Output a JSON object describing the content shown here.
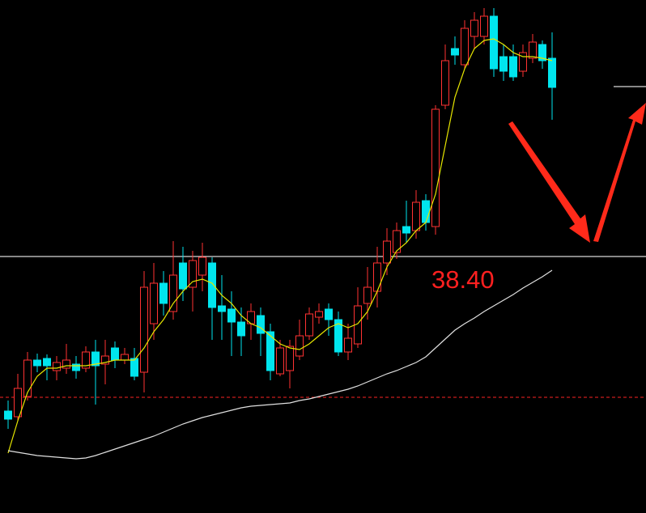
{
  "chart_data": {
    "type": "candlestick",
    "ylim": [
      25.72,
      51.08
    ],
    "up_color": "#ff3232",
    "down_color": "#00e5ee",
    "candles": {
      "open": [
        30.76,
        30.48,
        31.48,
        33.28,
        33.36,
        32.76,
        32.88,
        33.08,
        32.88,
        33.68,
        33.08,
        33.88,
        33.28,
        33.36,
        32.68,
        35.08,
        37.08,
        35.68,
        38.08,
        36.88,
        37.48,
        38.08,
        35.96,
        35.8,
        35.16,
        35.08,
        35.48,
        34.68,
        32.6,
        32.76,
        33.48,
        34.48,
        35.4,
        35.8,
        35.28,
        33.68,
        34.08,
        36.08,
        36.68,
        38.08,
        38.6,
        39.88,
        39.68,
        41.16,
        39.88,
        45.88,
        48.68,
        47.88,
        49.28,
        49.28,
        50.28,
        48.28,
        48.28,
        47.56,
        48.2,
        48.88,
        48.2
      ],
      "high": [
        31.28,
        32.6,
        33.68,
        33.6,
        33.56,
        33.48,
        34.08,
        33.48,
        33.96,
        34.28,
        34.28,
        34.2,
        33.88,
        33.88,
        37.68,
        38.08,
        37.68,
        39.16,
        38.88,
        38.68,
        39.08,
        38.36,
        37.48,
        36.68,
        35.88,
        36.08,
        35.88,
        35.08,
        34.28,
        34.28,
        35.28,
        35.88,
        36.08,
        36.08,
        35.68,
        35.08,
        36.88,
        37.88,
        38.88,
        39.8,
        40.08,
        41.16,
        41.68,
        41.48,
        45.88,
        48.88,
        49.28,
        50.08,
        50.48,
        50.68,
        50.68,
        48.88,
        48.88,
        48.88,
        49.4,
        49.08,
        49.48
      ],
      "low": [
        29.88,
        30.28,
        31.28,
        32.68,
        32.28,
        32.28,
        32.6,
        32.36,
        32.68,
        31.08,
        32.08,
        32.88,
        33.08,
        32.28,
        31.68,
        34.28,
        35.48,
        35.28,
        36.2,
        35.68,
        36.68,
        34.28,
        34.28,
        33.48,
        33.48,
        34.28,
        33.48,
        32.28,
        32.48,
        31.88,
        33.28,
        34.28,
        35.08,
        34.48,
        33.48,
        33.28,
        33.88,
        35.28,
        35.88,
        37.48,
        38.28,
        39.08,
        39.28,
        39.68,
        39.48,
        45.68,
        47.88,
        47.68,
        48.68,
        48.88,
        47.28,
        47.08,
        47.08,
        47.28,
        47.96,
        47.68,
        45.16
      ],
      "close": [
        30.36,
        31.88,
        33.28,
        33.0,
        33.0,
        33.16,
        33.28,
        32.76,
        33.68,
        33.0,
        33.48,
        33.28,
        33.56,
        32.48,
        36.88,
        37.08,
        36.08,
        37.48,
        36.8,
        38.2,
        38.36,
        35.88,
        35.68,
        35.16,
        34.48,
        35.68,
        34.6,
        32.76,
        33.88,
        33.96,
        34.48,
        35.56,
        35.68,
        35.28,
        33.68,
        34.36,
        35.96,
        36.88,
        38.08,
        39.16,
        39.68,
        39.56,
        41.08,
        40.08,
        45.68,
        48.08,
        48.36,
        49.68,
        50.08,
        50.28,
        47.68,
        47.56,
        47.28,
        48.48,
        49.0,
        48.08,
        46.76
      ]
    },
    "series": [
      {
        "color": "#e6e600",
        "values": [
          28.68,
          30.28,
          31.68,
          32.48,
          32.88,
          32.88,
          33.0,
          33.0,
          33.0,
          33.08,
          33.16,
          33.28,
          33.28,
          33.28,
          33.88,
          34.68,
          35.28,
          36.08,
          36.68,
          37.16,
          37.28,
          37.08,
          36.48,
          36.08,
          35.48,
          35.08,
          34.88,
          34.48,
          34.08,
          33.88,
          33.8,
          34.08,
          34.48,
          34.88,
          35.08,
          34.88,
          35.08,
          35.68,
          36.68,
          37.88,
          38.68,
          39.08,
          39.68,
          40.08,
          41.48,
          43.88,
          46.28,
          47.68,
          48.68,
          49.08,
          49.16,
          48.88,
          48.48,
          48.28,
          48.28,
          48.2,
          48.08
        ]
      },
      {
        "color": "#e0e0e0",
        "values": [
          28.8,
          28.72,
          28.64,
          28.56,
          28.52,
          28.48,
          28.44,
          28.4,
          28.44,
          28.56,
          28.72,
          28.88,
          29.04,
          29.2,
          29.36,
          29.52,
          29.72,
          29.92,
          30.12,
          30.28,
          30.44,
          30.56,
          30.68,
          30.8,
          30.92,
          31.0,
          31.04,
          31.08,
          31.12,
          31.16,
          31.28,
          31.36,
          31.48,
          31.6,
          31.72,
          31.84,
          32.0,
          32.2,
          32.4,
          32.6,
          32.76,
          32.96,
          33.16,
          33.44,
          33.88,
          34.32,
          34.76,
          35.08,
          35.36,
          35.68,
          35.96,
          36.24,
          36.52,
          36.84,
          37.12,
          37.4,
          37.72
        ]
      }
    ],
    "hlines": [
      {
        "value": 38.4,
        "label": "38.40",
        "color": "#d8d8d8",
        "label_color": "#ff2020"
      },
      {
        "value": 31.44,
        "color": "#c81e1e",
        "dashed": true
      },
      {
        "value": 46.8,
        "color": "#d8d8d8",
        "short": true
      }
    ]
  }
}
